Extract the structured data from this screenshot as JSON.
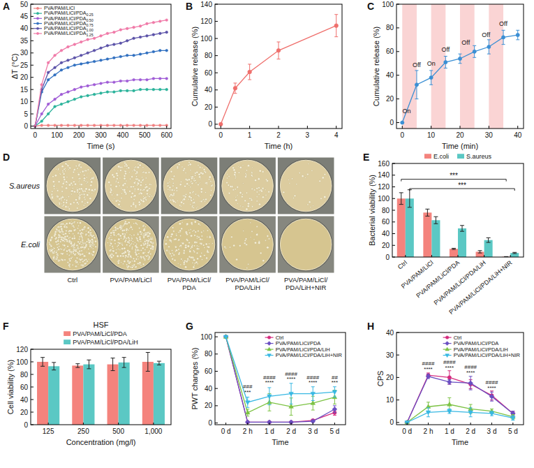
{
  "chart_data": [
    {
      "label": "A",
      "type": "line",
      "x_label": "Time (s)",
      "y_label": "ΔT (°C)",
      "x": [
        0,
        30,
        60,
        90,
        120,
        150,
        180,
        210,
        240,
        270,
        300,
        330,
        360,
        390,
        420,
        450,
        480,
        510,
        540,
        570,
        600
      ],
      "xlim": [
        -20,
        620
      ],
      "xticks": [
        0,
        100,
        200,
        300,
        400,
        500,
        600
      ],
      "ylim": [
        -1,
        50
      ],
      "yticks": [
        0,
        5,
        10,
        15,
        20,
        25,
        30,
        35,
        40,
        45,
        50
      ],
      "legend": "upper left",
      "marker": "circle",
      "series": [
        {
          "name": "PVA/PAM/LiCl",
          "color": "#f08080",
          "values": [
            0,
            0.3,
            0.3,
            0.3,
            0.3,
            0.3,
            0.3,
            0.3,
            0.3,
            0.3,
            0.3,
            0.3,
            0.3,
            0.3,
            0.3,
            0.3,
            0.3,
            0.3,
            0.3,
            0.3,
            0.3
          ]
        },
        {
          "name": "PVA/PAM/LiCl/PDA0.25",
          "color": "#2bb39b",
          "values": [
            0,
            2,
            5,
            8,
            9,
            10,
            11,
            12,
            12.5,
            13,
            13.5,
            14,
            14,
            14.5,
            14.5,
            14.5,
            15,
            15,
            15,
            15,
            15
          ]
        },
        {
          "name": "PVA/PAM/LiCl/PDA0.50",
          "color": "#a05cd6",
          "values": [
            0,
            5,
            9,
            11,
            13,
            14,
            15,
            16,
            16.5,
            17,
            17.5,
            18,
            18,
            18.5,
            18.5,
            19,
            19,
            19,
            19.5,
            19.5,
            19.5
          ]
        },
        {
          "name": "PVA/PAM/LiCl/PDA0.75",
          "color": "#2f6fc0",
          "values": [
            0,
            14,
            19,
            21,
            23,
            24,
            25,
            25.5,
            26,
            26.5,
            27,
            27.5,
            28,
            28.5,
            29,
            29,
            29.5,
            30,
            30.5,
            31,
            31
          ]
        },
        {
          "name": "PVA/PAM/LiCl/PDA1.00",
          "color": "#5b52a8",
          "values": [
            0,
            15,
            22,
            24,
            26,
            27,
            28,
            29,
            30,
            31,
            32,
            33,
            33.5,
            34,
            35,
            36,
            36.5,
            37,
            37.5,
            38,
            38.5
          ]
        },
        {
          "name": "PVA/PAM/LiCl/PDA1.25",
          "color": "#f07aa8",
          "values": [
            0,
            17,
            26,
            29,
            31,
            32.5,
            33.5,
            34.5,
            35.5,
            36,
            37,
            38,
            38.5,
            39.5,
            40,
            40.5,
            41,
            42,
            42.5,
            43,
            43.5
          ]
        }
      ]
    },
    {
      "label": "B",
      "type": "line",
      "x_label": "Time (h)",
      "y_label": "Cumulative release (%)",
      "x": [
        0,
        0.5,
        1,
        2,
        4
      ],
      "values": [
        0,
        42,
        61,
        86,
        115
      ],
      "errors": [
        0,
        6,
        9,
        10,
        13
      ],
      "color": "#ef6f6c",
      "marker": "circle",
      "xlim": [
        -0.2,
        4.2
      ],
      "xticks": [
        0,
        1,
        2,
        3,
        4
      ],
      "ylim": [
        -5,
        140
      ],
      "yticks": [
        0,
        20,
        40,
        60,
        80,
        100,
        120,
        140
      ]
    },
    {
      "label": "C",
      "type": "line",
      "x_label": "Time (min)",
      "y_label": "Cumulative release (%)",
      "x": [
        0,
        5,
        10,
        15,
        20,
        25,
        30,
        35,
        40
      ],
      "values": [
        0,
        32,
        38,
        51,
        54,
        60,
        64,
        72,
        74
      ],
      "errors": [
        0,
        12,
        6,
        5,
        4,
        5,
        6,
        6,
        4
      ],
      "color": "#3b8fd4",
      "marker": "circle",
      "xlim": [
        -2,
        42
      ],
      "xticks": [
        0,
        10,
        20,
        30,
        40
      ],
      "ylim": [
        -5,
        100
      ],
      "yticks": [
        0,
        20,
        40,
        60,
        80,
        100
      ],
      "bands": [
        [
          0,
          5
        ],
        [
          10,
          15
        ],
        [
          20,
          25
        ],
        [
          30,
          35
        ]
      ],
      "annotations": [
        {
          "x": 1.5,
          "y": 8,
          "text": "On"
        },
        {
          "x": 5,
          "y": 47,
          "text": "Off"
        },
        {
          "x": 10,
          "y": 48,
          "text": "On"
        },
        {
          "x": 15,
          "y": 60,
          "text": "Off"
        },
        {
          "x": 22,
          "y": 66,
          "text": "Off"
        },
        {
          "x": 29,
          "y": 72,
          "text": "Off"
        },
        {
          "x": 35,
          "y": 82,
          "text": "Off"
        }
      ]
    },
    {
      "label": "D",
      "type": "image_grid",
      "rows": [
        "S.aureus",
        "E.coli"
      ],
      "columns": [
        "Ctrl",
        "PVA/PAM/LiCl",
        "PVA/PAM/LiCl/PDA",
        "PVA/PAM/LiCl/PDA/LiH",
        "PVA/PAM/LiCl/PDA/LiH+NIR"
      ]
    },
    {
      "label": "E",
      "type": "bar",
      "y_label": "Bacterial viability (%)",
      "categories": [
        "Ctrl",
        "PVA/PAM/LiCl",
        "PVA/PAM/LiCl/PDA",
        "PVA/PAM/LiCl/PDA/LiH",
        "PVA/PAM/LiCl/PDA/LiH+NIR"
      ],
      "ylim": [
        0,
        160
      ],
      "yticks": [
        0,
        20,
        40,
        60,
        80,
        100,
        120,
        140,
        160
      ],
      "legend": "top",
      "series": [
        {
          "name": "E.coli",
          "color": "#f4837d",
          "values": [
            100,
            76,
            14,
            9,
            0.5
          ],
          "errors": [
            10,
            6,
            1,
            2,
            0.3
          ]
        },
        {
          "name": "S.aureus",
          "color": "#5bc8c4",
          "values": [
            100,
            63,
            49,
            29,
            7
          ],
          "errors": [
            15,
            6,
            5,
            4,
            1
          ]
        }
      ],
      "annotations": [
        {
          "from": 0,
          "to": 4,
          "series": 0,
          "y": 133,
          "text": "***"
        },
        {
          "from": 0,
          "to": 4,
          "series": 1,
          "y": 117,
          "text": "***"
        }
      ]
    },
    {
      "label": "F",
      "type": "bar",
      "title": "HSF",
      "x_label": "Concentration (mg/l)",
      "y_label": "Cell viability (%)",
      "categories": [
        "125",
        "250",
        "500",
        "1,000"
      ],
      "ylim": [
        0,
        120
      ],
      "yticks": [
        0,
        20,
        40,
        60,
        80,
        100,
        120
      ],
      "legend": "top",
      "series": [
        {
          "name": "PVA/PAM/LiCl/PDA",
          "color": "#f4837d",
          "values": [
            100,
            94,
            96,
            100
          ],
          "errors": [
            7,
            3,
            10,
            15
          ]
        },
        {
          "name": "PVA/PAM/LiCl/PDA/LiH",
          "color": "#5bc8c4",
          "values": [
            93,
            96,
            99,
            98
          ],
          "errors": [
            6,
            7,
            8,
            3
          ]
        }
      ]
    },
    {
      "label": "G",
      "type": "line",
      "x_label": "Time",
      "y_label": "PWT changes (%)",
      "categories": [
        "0 d",
        "2 h",
        "1 d",
        "2 d",
        "3 d",
        "5 d"
      ],
      "ylim": [
        -2,
        105
      ],
      "yticks": [
        0,
        20,
        40,
        60,
        80,
        100
      ],
      "legend": "upper right",
      "series": [
        {
          "name": "Ctrl",
          "color": "#d42a7d",
          "marker": "circle",
          "values": [
            100,
            1,
            1,
            1,
            3,
            12
          ],
          "errors": [
            0,
            0.5,
            0.5,
            0.5,
            1,
            3
          ]
        },
        {
          "name": "PVA/PAM/LiCl/PDA",
          "color": "#6a4fc2",
          "marker": "diamond",
          "values": [
            100,
            1,
            1,
            1,
            2,
            16
          ],
          "errors": [
            0,
            0.5,
            0.5,
            0.5,
            1,
            4
          ]
        },
        {
          "name": "PVA/PAM/LiCl/PDA/LiH",
          "color": "#7cc243",
          "marker": "triangle",
          "values": [
            100,
            12,
            24,
            19,
            23,
            30
          ],
          "errors": [
            0,
            4,
            10,
            10,
            8,
            8
          ]
        },
        {
          "name": "PVA/PAM/LiCl/PDA/LiH+NIR",
          "color": "#38b8e3",
          "marker": "triangle-down",
          "values": [
            100,
            24,
            31,
            34,
            34,
            36
          ],
          "errors": [
            0,
            6,
            10,
            12,
            8,
            6
          ]
        }
      ],
      "annotations": [
        {
          "category_index": 1,
          "y": 34,
          "text": "***"
        },
        {
          "category_index": 1,
          "y": 40,
          "text": "###"
        },
        {
          "category_index": 2,
          "y": 45,
          "text": "****"
        },
        {
          "category_index": 2,
          "y": 51,
          "text": "####"
        },
        {
          "category_index": 3,
          "y": 49,
          "text": "****"
        },
        {
          "category_index": 3,
          "y": 55,
          "text": "####"
        },
        {
          "category_index": 4,
          "y": 45,
          "text": "****"
        },
        {
          "category_index": 4,
          "y": 51,
          "text": "####"
        },
        {
          "category_index": 5,
          "y": 45,
          "text": "***"
        },
        {
          "category_index": 5,
          "y": 51,
          "text": "##"
        }
      ]
    },
    {
      "label": "H",
      "type": "line",
      "x_label": "Time",
      "y_label": "CPS",
      "categories": [
        "0 d",
        "2 h",
        "1 d",
        "2 d",
        "3 d",
        "5 d"
      ],
      "ylim": [
        -1,
        40
      ],
      "yticks": [
        0,
        10,
        20,
        30,
        40
      ],
      "legend": "upper right",
      "series": [
        {
          "name": "Ctrl",
          "color": "#d42a7d",
          "marker": "circle",
          "values": [
            0,
            21,
            20,
            17,
            12,
            4
          ],
          "errors": [
            0,
            1,
            3,
            2,
            2,
            1
          ]
        },
        {
          "name": "PVA/PAM/LiCl/PDA",
          "color": "#6a4fc2",
          "marker": "diamond",
          "values": [
            0,
            20.5,
            18,
            17.5,
            11.5,
            4
          ],
          "errors": [
            0,
            1,
            1,
            3,
            2,
            1
          ]
        },
        {
          "name": "PVA/PAM/LiCl/PDA/LiH",
          "color": "#7cc243",
          "marker": "triangle",
          "values": [
            0,
            7,
            8,
            6,
            5,
            2.5
          ],
          "errors": [
            0,
            2,
            3,
            2,
            1,
            1
          ]
        },
        {
          "name": "PVA/PAM/LiCl/PDA/LiH+NIR",
          "color": "#38b8e3",
          "marker": "triangle-down",
          "values": [
            0,
            4.5,
            5,
            4.5,
            4,
            2
          ],
          "errors": [
            0,
            2,
            1,
            2,
            1,
            1
          ]
        }
      ],
      "annotations": [
        {
          "category_index": 1,
          "y": 23,
          "text": "****"
        },
        {
          "category_index": 1,
          "y": 25.5,
          "text": "####"
        },
        {
          "category_index": 2,
          "y": 23.5,
          "text": "****"
        },
        {
          "category_index": 2,
          "y": 26,
          "text": "####"
        },
        {
          "category_index": 3,
          "y": 21.5,
          "text": "****"
        },
        {
          "category_index": 3,
          "y": 24,
          "text": "####"
        },
        {
          "category_index": 4,
          "y": 14.5,
          "text": "****"
        },
        {
          "category_index": 4,
          "y": 17,
          "text": "####"
        }
      ]
    }
  ]
}
